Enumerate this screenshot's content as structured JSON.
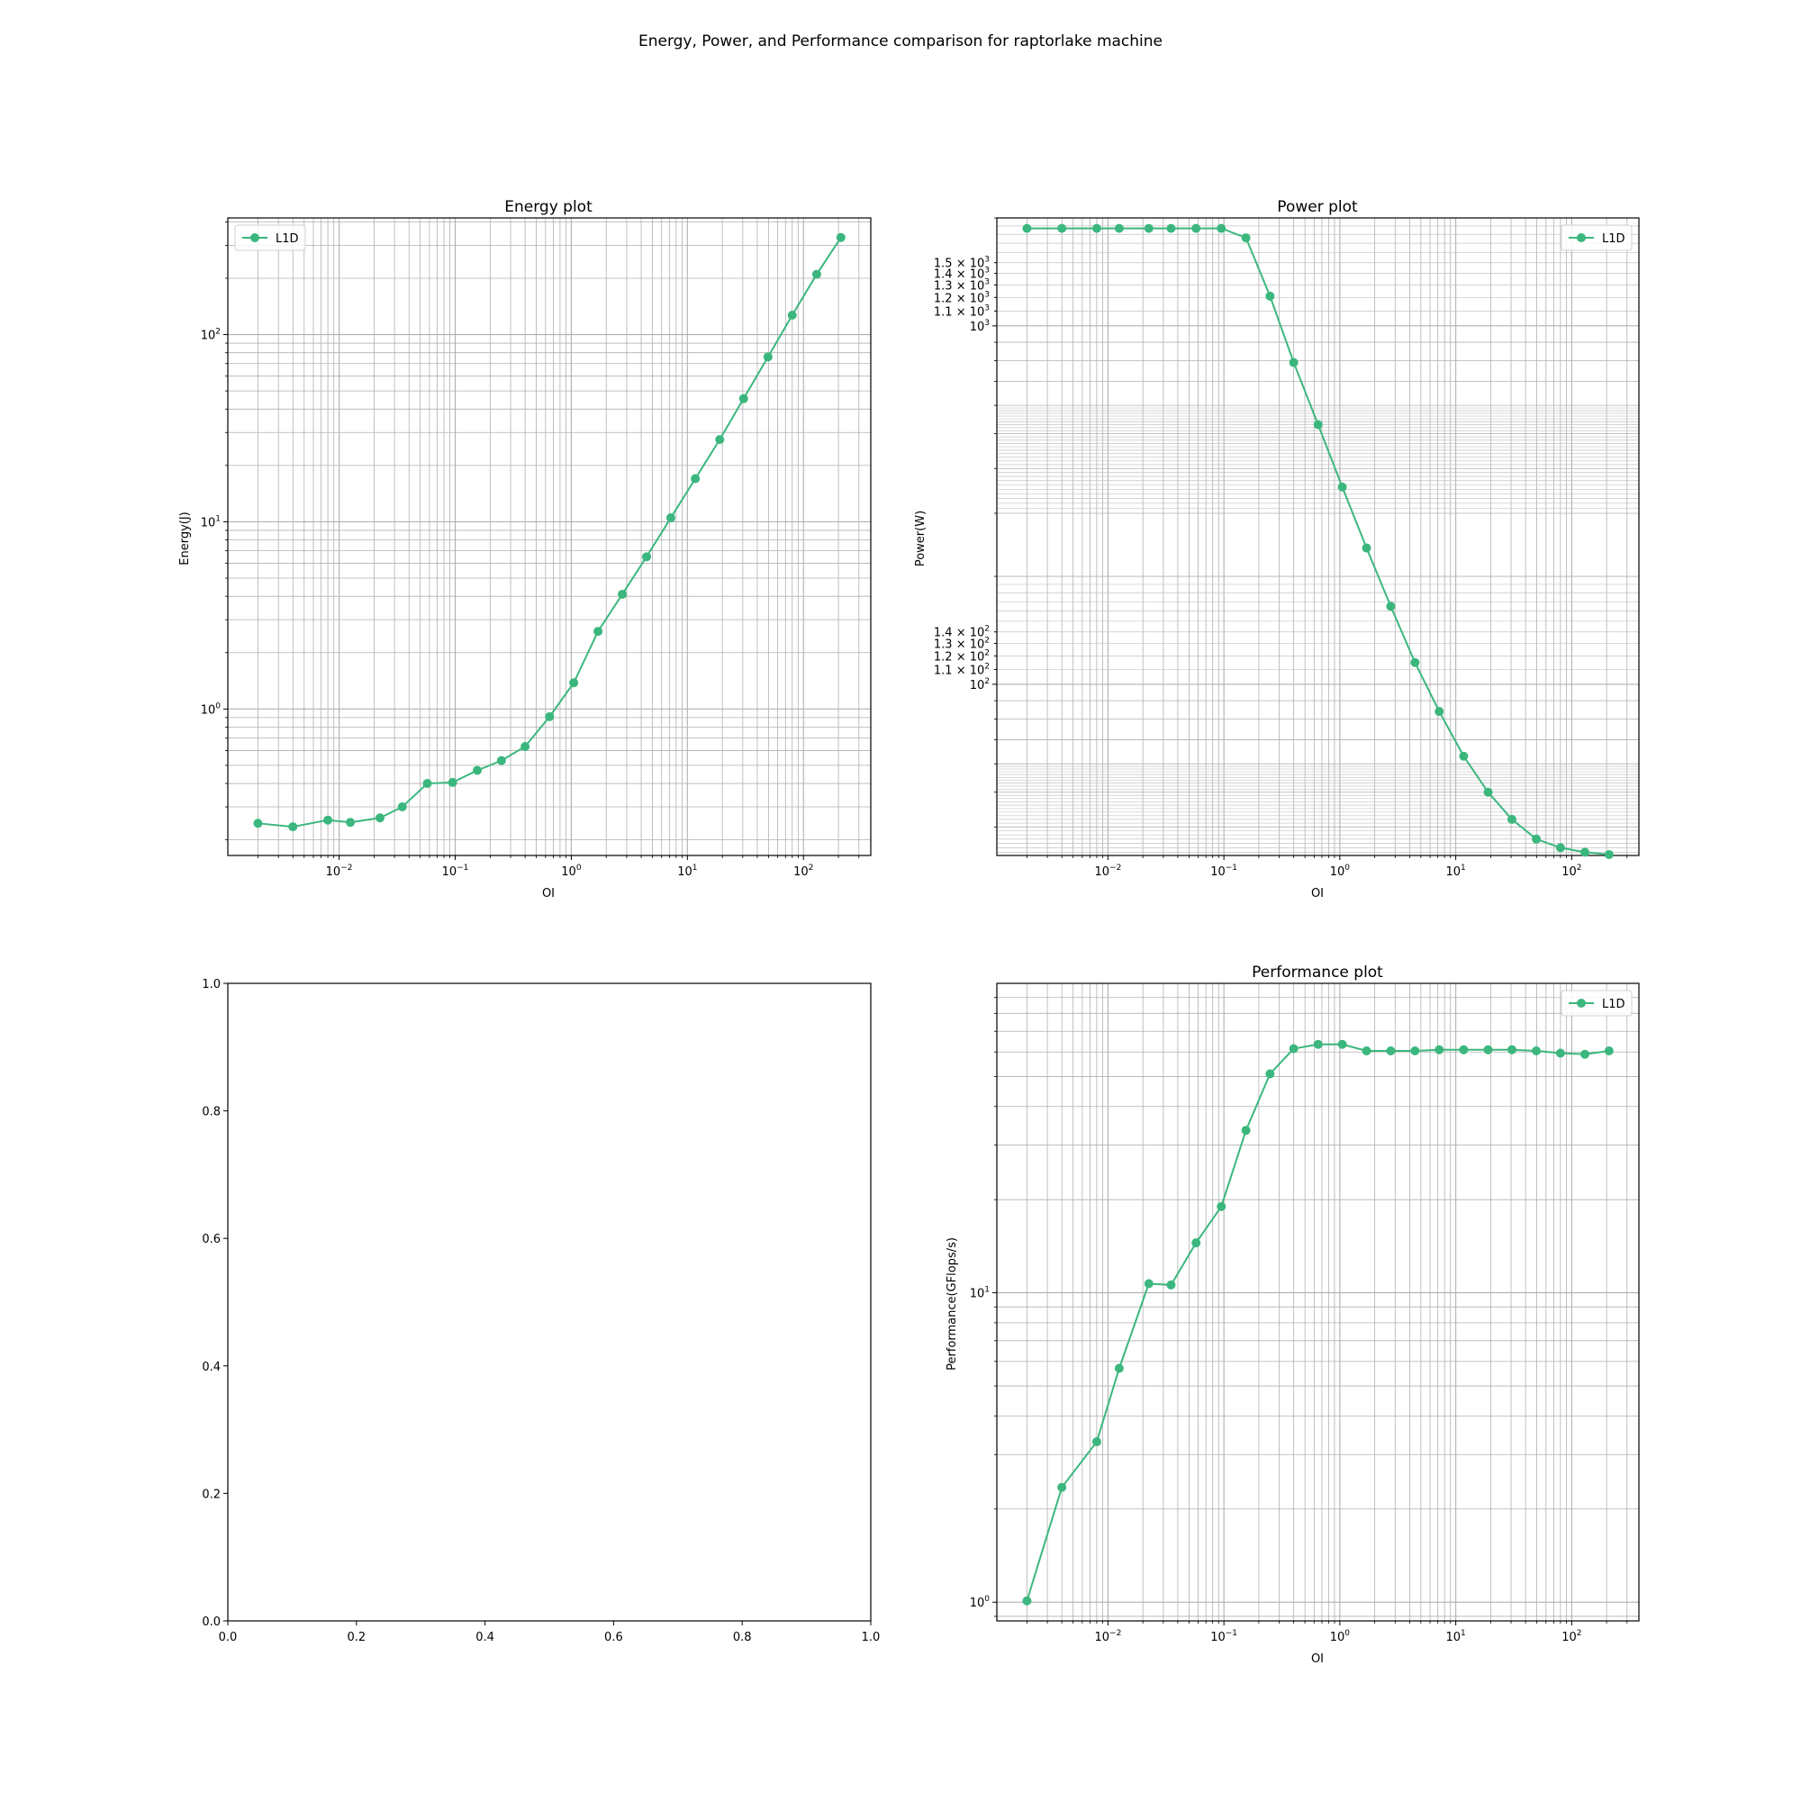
{
  "figure": {
    "suptitle": "Energy, Power, and Performance comparison for raptorlake machine",
    "series_color": "#3bb77e"
  },
  "chart_data": [
    {
      "id": "energy",
      "type": "line",
      "title": "Energy plot",
      "xlabel": "OI",
      "ylabel": "Energy(J)",
      "xscale": "log",
      "yscale": "log",
      "xlim": [
        0.0011,
        380
      ],
      "ylim": [
        0.165,
        420
      ],
      "grid": true,
      "legend": "upper left",
      "x_ticks": [
        {
          "v": 0.01,
          "b": "10",
          "e": "−2"
        },
        {
          "v": 0.1,
          "b": "10",
          "e": "−1"
        },
        {
          "v": 1,
          "b": "10",
          "e": "0"
        },
        {
          "v": 10,
          "b": "10",
          "e": "1"
        },
        {
          "v": 100,
          "b": "10",
          "e": "2"
        }
      ],
      "y_ticks": [
        {
          "v": 1,
          "b": "10",
          "e": "0"
        },
        {
          "v": 10,
          "b": "10",
          "e": "1"
        },
        {
          "v": 100,
          "b": "10",
          "e": "2"
        }
      ],
      "series": [
        {
          "name": "L1D",
          "x": [
            0.002,
            0.004,
            0.008,
            0.0125,
            0.0225,
            0.035,
            0.0575,
            0.095,
            0.155,
            0.25,
            0.4,
            0.65,
            1.05,
            1.7,
            2.75,
            4.45,
            7.2,
            11.7,
            19,
            30.5,
            49.5,
            80,
            130,
            210
          ],
          "y": [
            0.245,
            0.235,
            0.255,
            0.248,
            0.262,
            0.3,
            0.4,
            0.405,
            0.47,
            0.53,
            0.63,
            0.91,
            1.38,
            2.6,
            4.1,
            6.5,
            10.5,
            17,
            27.5,
            45.5,
            76,
            127,
            210,
            330
          ]
        }
      ]
    },
    {
      "id": "power",
      "type": "line",
      "title": "Power plot",
      "xlabel": "OI",
      "ylabel": "Power(W)",
      "xscale": "log",
      "yscale": "log",
      "xlim": [
        0.0011,
        380
      ],
      "ylim": [
        33.3,
        2000
      ],
      "grid": true,
      "legend": "upper right",
      "x_ticks": [
        {
          "v": 0.01,
          "b": "10",
          "e": "−2"
        },
        {
          "v": 0.1,
          "b": "10",
          "e": "−1"
        },
        {
          "v": 1,
          "b": "10",
          "e": "0"
        },
        {
          "v": 10,
          "b": "10",
          "e": "1"
        },
        {
          "v": 100,
          "b": "10",
          "e": "2"
        }
      ],
      "y_ticks": [
        {
          "v": 100,
          "b": "10",
          "e": "2"
        },
        {
          "v": 110,
          "b": "1.1 × 10",
          "e": "2"
        },
        {
          "v": 120,
          "b": "1.2 × 10",
          "e": "2"
        },
        {
          "v": 130,
          "b": "1.3 × 10",
          "e": "2"
        },
        {
          "v": 140,
          "b": "1.4 × 10",
          "e": "2"
        },
        {
          "v": 1000,
          "b": "10",
          "e": "3"
        },
        {
          "v": 1100,
          "b": "1.1 × 10",
          "e": "3"
        },
        {
          "v": 1200,
          "b": "1.2 × 10",
          "e": "3"
        },
        {
          "v": 1300,
          "b": "1.3 × 10",
          "e": "3"
        },
        {
          "v": 1400,
          "b": "1.4 × 10",
          "e": "3"
        },
        {
          "v": 1500,
          "b": "1.5 × 10",
          "e": "3"
        }
      ],
      "series": [
        {
          "name": "L1D",
          "x": [
            0.002,
            0.004,
            0.008,
            0.0125,
            0.0225,
            0.035,
            0.0575,
            0.095,
            0.155,
            0.25,
            0.4,
            0.65,
            1.05,
            1.7,
            2.75,
            4.45,
            7.2,
            11.7,
            19,
            30.5,
            49.5,
            80,
            130,
            210
          ],
          "y": [
            1870,
            1870,
            1870,
            1870,
            1870,
            1870,
            1870,
            1870,
            1760,
            1210,
            790,
            530,
            355,
            240,
            165,
            115,
            84,
            63,
            50,
            42,
            37,
            35,
            34,
            33.5
          ]
        }
      ]
    },
    {
      "id": "empty",
      "type": "line",
      "title": "",
      "xlabel": "",
      "ylabel": "",
      "xscale": "linear",
      "yscale": "linear",
      "xlim": [
        0,
        1
      ],
      "ylim": [
        0,
        1
      ],
      "grid": false,
      "legend": "",
      "x_ticks": [
        {
          "v": 0,
          "b": "0.0"
        },
        {
          "v": 0.2,
          "b": "0.2"
        },
        {
          "v": 0.4,
          "b": "0.4"
        },
        {
          "v": 0.6,
          "b": "0.6"
        },
        {
          "v": 0.8,
          "b": "0.8"
        },
        {
          "v": 1,
          "b": "1.0"
        }
      ],
      "y_ticks": [
        {
          "v": 0,
          "b": "0.0"
        },
        {
          "v": 0.2,
          "b": "0.2"
        },
        {
          "v": 0.4,
          "b": "0.4"
        },
        {
          "v": 0.6,
          "b": "0.6"
        },
        {
          "v": 0.8,
          "b": "0.8"
        },
        {
          "v": 1,
          "b": "1.0"
        }
      ],
      "series": []
    },
    {
      "id": "performance",
      "type": "line",
      "title": "Performance plot",
      "xlabel": "OI",
      "ylabel": "Performance(GFlops/s)",
      "xscale": "log",
      "yscale": "log",
      "xlim": [
        0.0011,
        380
      ],
      "ylim": [
        0.87,
        100
      ],
      "grid": true,
      "legend": "upper right",
      "x_ticks": [
        {
          "v": 0.01,
          "b": "10",
          "e": "−2"
        },
        {
          "v": 0.1,
          "b": "10",
          "e": "−1"
        },
        {
          "v": 1,
          "b": "10",
          "e": "0"
        },
        {
          "v": 10,
          "b": "10",
          "e": "1"
        },
        {
          "v": 100,
          "b": "10",
          "e": "2"
        }
      ],
      "y_ticks": [
        {
          "v": 1,
          "b": "10",
          "e": "0"
        },
        {
          "v": 10,
          "b": "10",
          "e": "1"
        }
      ],
      "series": [
        {
          "name": "L1D",
          "x": [
            0.002,
            0.004,
            0.008,
            0.0125,
            0.0225,
            0.035,
            0.0575,
            0.095,
            0.155,
            0.25,
            0.4,
            0.65,
            1.05,
            1.7,
            2.75,
            4.45,
            7.2,
            11.7,
            19,
            30.5,
            49.5,
            80,
            130,
            210
          ],
          "y": [
            1.01,
            2.35,
            3.3,
            5.7,
            10.7,
            10.6,
            14.5,
            19,
            33.5,
            51,
            61.5,
            63.5,
            63.5,
            60.5,
            60.5,
            60.5,
            61,
            61,
            61,
            61,
            60.5,
            59.5,
            59,
            60.5
          ]
        }
      ]
    }
  ]
}
